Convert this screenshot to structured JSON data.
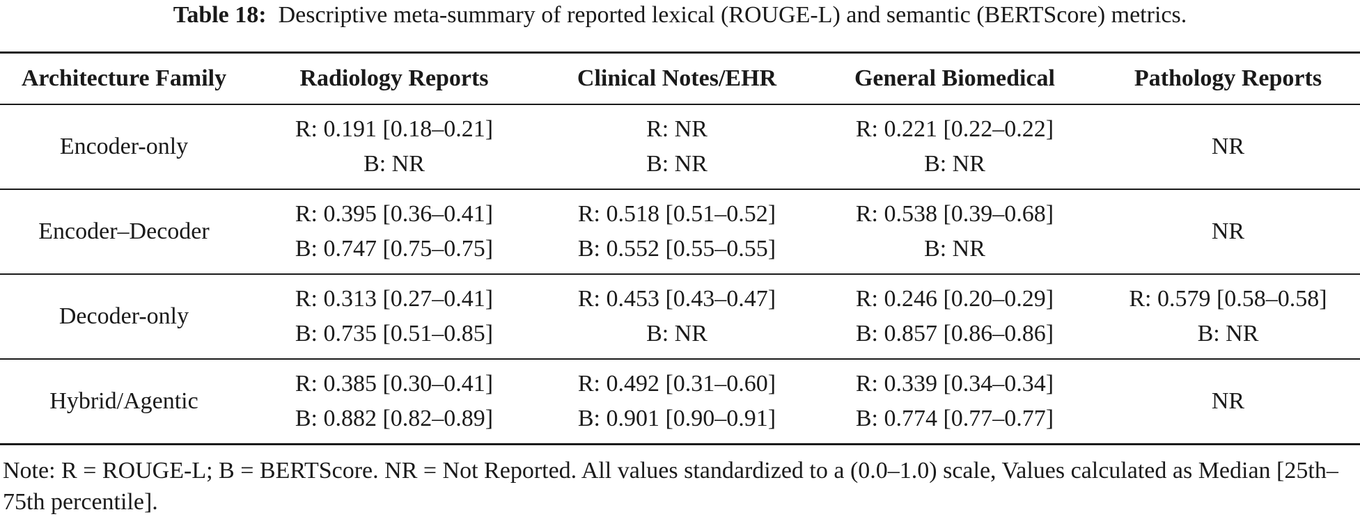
{
  "caption": {
    "label": "Table 18:",
    "text": "Descriptive meta-summary of reported lexical (ROUGE-L) and semantic (BERTScore) metrics."
  },
  "table": {
    "headers": [
      "Architecture Family",
      "Radiology Reports",
      "Clinical Notes/EHR",
      "General Biomedical",
      "Pathology Reports"
    ],
    "rows": [
      {
        "family": "Encoder-only",
        "cells": [
          [
            "R: 0.191 [0.18–0.21]",
            "B: NR"
          ],
          [
            "R: NR",
            "B: NR"
          ],
          [
            "R: 0.221 [0.22–0.22]",
            "B: NR"
          ],
          [
            "NR"
          ]
        ]
      },
      {
        "family": "Encoder–Decoder",
        "cells": [
          [
            "R: 0.395 [0.36–0.41]",
            "B: 0.747 [0.75–0.75]"
          ],
          [
            "R: 0.518 [0.51–0.52]",
            "B: 0.552 [0.55–0.55]"
          ],
          [
            "R: 0.538 [0.39–0.68]",
            "B: NR"
          ],
          [
            "NR"
          ]
        ]
      },
      {
        "family": "Decoder-only",
        "cells": [
          [
            "R: 0.313 [0.27–0.41]",
            "B: 0.735 [0.51–0.85]"
          ],
          [
            "R: 0.453 [0.43–0.47]",
            "B: NR"
          ],
          [
            "R: 0.246 [0.20–0.29]",
            "B: 0.857 [0.86–0.86]"
          ],
          [
            "R: 0.579 [0.58–0.58]",
            "B: NR"
          ]
        ]
      },
      {
        "family": "Hybrid/Agentic",
        "cells": [
          [
            "R: 0.385 [0.30–0.41]",
            "B: 0.882 [0.82–0.89]"
          ],
          [
            "R: 0.492 [0.31–0.60]",
            "B: 0.901 [0.90–0.91]"
          ],
          [
            "R: 0.339 [0.34–0.34]",
            "B: 0.774 [0.77–0.77]"
          ],
          [
            "NR"
          ]
        ]
      }
    ]
  },
  "note": "Note: R = ROUGE-L; B = BERTScore. NR = Not Reported. All values standardized to a (0.0–1.0) scale, Values calculated as Median [25th–75th percentile]."
}
